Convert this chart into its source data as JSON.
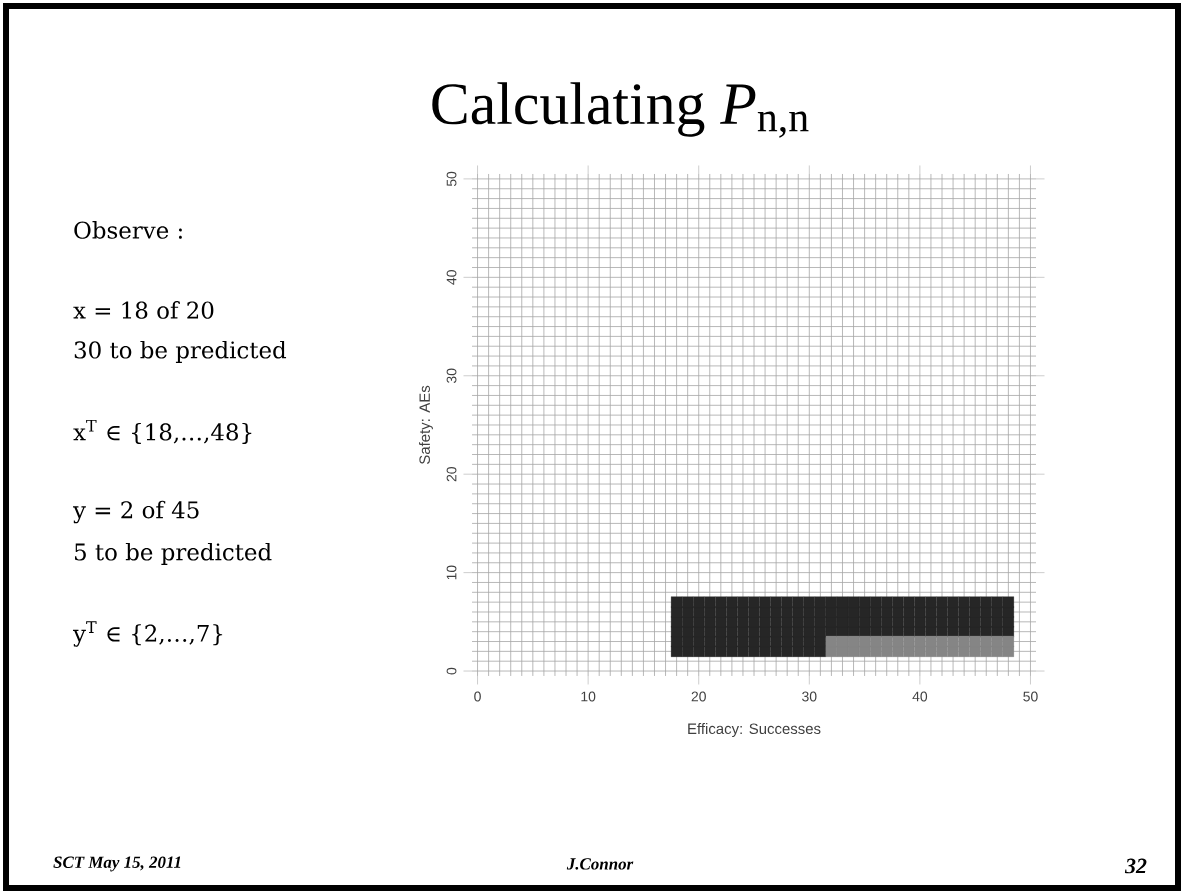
{
  "chart_data": {
    "type": "scatter",
    "title": "Calculating *P*$_{n,n}$",
    "xlabel": "Efficacy: Successes",
    "ylabel": "Safety: AEs",
    "annotations": [
      "Observe :",
      "x = 18 of 20",
      "30 to be predicted",
      "x$^{T}$ ∈ {18,…,48}",
      "y = 2 of 45",
      "5 to be predicted",
      "y$^{T}$ ∈ {2,…,7}",
      "SCT May 15, 2011",
      "J.Connor",
      "32"
    ],
    "xlim": [
      -0.5,
      50.5
    ],
    "ylim": [
      -0.5,
      50.5
    ],
    "xticks": [
      0,
      10,
      20,
      30,
      40,
      50
    ],
    "yticks": [
      0,
      10,
      20,
      30,
      40,
      50
    ],
    "grid": true,
    "marker": "square",
    "series": [
      {
        "color": "#262626",
        "x": [
          18,
          19,
          20,
          21,
          22,
          23,
          24,
          25,
          26,
          27,
          28,
          29,
          30,
          31,
          18,
          19,
          20,
          21,
          22,
          23,
          24,
          25,
          26,
          27,
          28,
          29,
          30,
          31,
          18,
          19,
          20,
          21,
          22,
          23,
          24,
          25,
          26,
          27,
          28,
          29,
          30,
          31,
          32,
          33,
          34,
          35,
          36,
          37,
          38,
          39,
          40,
          41,
          42,
          43,
          44,
          45,
          46,
          47,
          48,
          18,
          19,
          20,
          21,
          22,
          23,
          24,
          25,
          26,
          27,
          28,
          29,
          30,
          31,
          32,
          33,
          34,
          35,
          36,
          37,
          38,
          39,
          40,
          41,
          42,
          43,
          44,
          45,
          46,
          47,
          48,
          18,
          19,
          20,
          21,
          22,
          23,
          24,
          25,
          26,
          27,
          28,
          29,
          30,
          31,
          32,
          33,
          34,
          35,
          36,
          37,
          38,
          39,
          40,
          41,
          42,
          43,
          44,
          45,
          46,
          47,
          48,
          18,
          19,
          20,
          21,
          22,
          23,
          24,
          25,
          26,
          27,
          28,
          29,
          30,
          31,
          32,
          33,
          34,
          35,
          36,
          37,
          38,
          39,
          40,
          41,
          42,
          43,
          44,
          45,
          46,
          47,
          48
        ],
        "values": [
          2,
          2,
          2,
          2,
          2,
          2,
          2,
          2,
          2,
          2,
          2,
          2,
          2,
          2,
          3,
          3,
          3,
          3,
          3,
          3,
          3,
          3,
          3,
          3,
          3,
          3,
          3,
          3,
          4,
          4,
          4,
          4,
          4,
          4,
          4,
          4,
          4,
          4,
          4,
          4,
          4,
          4,
          4,
          4,
          4,
          4,
          4,
          4,
          4,
          4,
          4,
          4,
          4,
          4,
          4,
          4,
          4,
          4,
          4,
          5,
          5,
          5,
          5,
          5,
          5,
          5,
          5,
          5,
          5,
          5,
          5,
          5,
          5,
          5,
          5,
          5,
          5,
          5,
          5,
          5,
          5,
          5,
          5,
          5,
          5,
          5,
          5,
          5,
          5,
          5,
          6,
          6,
          6,
          6,
          6,
          6,
          6,
          6,
          6,
          6,
          6,
          6,
          6,
          6,
          6,
          6,
          6,
          6,
          6,
          6,
          6,
          6,
          6,
          6,
          6,
          6,
          6,
          6,
          6,
          6,
          6,
          7,
          7,
          7,
          7,
          7,
          7,
          7,
          7,
          7,
          7,
          7,
          7,
          7,
          7,
          7,
          7,
          7,
          7,
          7,
          7,
          7,
          7,
          7,
          7,
          7,
          7,
          7,
          7,
          7,
          7,
          7
        ]
      },
      {
        "color": "#858585",
        "x": [
          32,
          33,
          34,
          35,
          36,
          37,
          38,
          39,
          40,
          41,
          42,
          43,
          44,
          45,
          46,
          47,
          48,
          32,
          33,
          34,
          35,
          36,
          37,
          38,
          39,
          40,
          41,
          42,
          43,
          44,
          45,
          46,
          47,
          48
        ],
        "values": [
          2,
          2,
          2,
          2,
          2,
          2,
          2,
          2,
          2,
          2,
          2,
          2,
          2,
          2,
          2,
          2,
          2,
          3,
          3,
          3,
          3,
          3,
          3,
          3,
          3,
          3,
          3,
          3,
          3,
          3,
          3,
          3,
          3,
          3
        ]
      }
    ]
  }
}
